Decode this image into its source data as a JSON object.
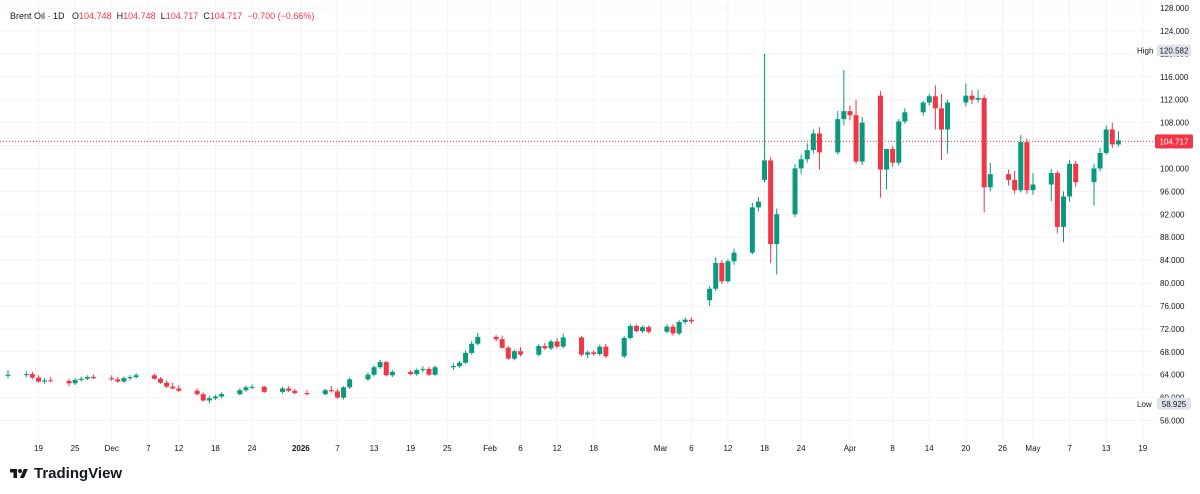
{
  "legend": {
    "symbol": "Brent Oil · 1D",
    "open_label": "O",
    "open": "104.748",
    "high_label": "H",
    "high": "104.748",
    "low_label": "L",
    "low": "104.717",
    "close_label": "C",
    "close": "104.717",
    "change": "−0.700 (−0.66%)"
  },
  "brand": {
    "name": "TradingView",
    "icon": "tradingview-logo-icon"
  },
  "colors": {
    "up": "#089981",
    "down": "#f23645",
    "last_price": "#f23645",
    "grid": "#f0f3fa"
  },
  "chart_data": {
    "type": "candlestick",
    "y_range": [
      54,
      128
    ],
    "y_ticks": [
      56,
      60,
      64,
      68,
      72,
      76,
      80,
      84,
      88,
      92,
      96,
      100,
      104,
      108,
      112,
      116,
      120,
      124,
      128
    ],
    "y_tick_labels": [
      "56.000",
      "60.000",
      "64.000",
      "68.000",
      "72.000",
      "76.000",
      "80.000",
      "84.000",
      "88.000",
      "92.000",
      "96.000",
      "100.000",
      "104.000",
      "108.000",
      "112.000",
      "116.000",
      "120.000",
      "124.000",
      "128.000"
    ],
    "x_axis_ticks": [
      {
        "label": "19",
        "date": "2025-11-19"
      },
      {
        "label": "25",
        "date": "2025-11-25"
      },
      {
        "label": "Dec",
        "date": "2025-12-01"
      },
      {
        "label": "7",
        "date": "2025-12-07"
      },
      {
        "label": "12",
        "date": "2025-12-12"
      },
      {
        "label": "18",
        "date": "2025-12-18"
      },
      {
        "label": "24",
        "date": "2025-12-24"
      },
      {
        "label": "2026",
        "date": "2026-01-01",
        "bold": true
      },
      {
        "label": "7",
        "date": "2026-01-07"
      },
      {
        "label": "13",
        "date": "2026-01-13"
      },
      {
        "label": "19",
        "date": "2026-01-19"
      },
      {
        "label": "25",
        "date": "2026-01-25"
      },
      {
        "label": "Feb",
        "date": "2026-02-01"
      },
      {
        "label": "6",
        "date": "2026-02-06"
      },
      {
        "label": "12",
        "date": "2026-02-12"
      },
      {
        "label": "18",
        "date": "2026-02-18"
      },
      {
        "label": "Mar",
        "date": "2026-03-01"
      },
      {
        "label": "6",
        "date": "2026-03-06"
      },
      {
        "label": "12",
        "date": "2026-03-12"
      },
      {
        "label": "18",
        "date": "2026-03-18"
      },
      {
        "label": "24",
        "date": "2026-03-24"
      },
      {
        "label": "Apr",
        "date": "2026-04-01"
      },
      {
        "label": "8",
        "date": "2026-04-08"
      },
      {
        "label": "14",
        "date": "2026-04-14"
      },
      {
        "label": "20",
        "date": "2026-04-20"
      },
      {
        "label": "26",
        "date": "2026-04-26"
      },
      {
        "label": "May",
        "date": "2026-05-01"
      },
      {
        "label": "7",
        "date": "2026-05-07"
      },
      {
        "label": "13",
        "date": "2026-05-13"
      },
      {
        "label": "19",
        "date": "2026-05-19"
      }
    ],
    "x_range": [
      "2025-11-14",
      "2026-05-21"
    ],
    "candles": [
      {
        "d": "2025-11-14",
        "o": 63.8,
        "h": 64.8,
        "l": 63.4,
        "c": 64.0
      },
      {
        "d": "2025-11-17",
        "o": 64.0,
        "h": 64.6,
        "l": 63.6,
        "c": 64.1
      },
      {
        "d": "2025-11-18",
        "o": 64.1,
        "h": 64.5,
        "l": 63.2,
        "c": 63.5
      },
      {
        "d": "2025-11-19",
        "o": 63.5,
        "h": 63.9,
        "l": 62.6,
        "c": 62.8
      },
      {
        "d": "2025-11-20",
        "o": 62.8,
        "h": 63.4,
        "l": 62.4,
        "c": 63.0
      },
      {
        "d": "2025-11-21",
        "o": 63.0,
        "h": 63.6,
        "l": 62.7,
        "c": 62.9
      },
      {
        "d": "2025-11-24",
        "o": 62.9,
        "h": 63.3,
        "l": 62.0,
        "c": 62.5
      },
      {
        "d": "2025-11-25",
        "o": 62.5,
        "h": 63.4,
        "l": 62.2,
        "c": 63.1
      },
      {
        "d": "2025-11-26",
        "o": 63.1,
        "h": 63.7,
        "l": 62.8,
        "c": 63.3
      },
      {
        "d": "2025-11-27",
        "o": 63.3,
        "h": 63.9,
        "l": 63.0,
        "c": 63.6
      },
      {
        "d": "2025-11-28",
        "o": 63.6,
        "h": 64.0,
        "l": 63.2,
        "c": 63.4
      },
      {
        "d": "2025-12-01",
        "o": 63.4,
        "h": 63.9,
        "l": 62.9,
        "c": 63.2
      },
      {
        "d": "2025-12-02",
        "o": 63.2,
        "h": 63.6,
        "l": 62.6,
        "c": 62.8
      },
      {
        "d": "2025-12-03",
        "o": 62.8,
        "h": 63.7,
        "l": 62.6,
        "c": 63.4
      },
      {
        "d": "2025-12-04",
        "o": 63.4,
        "h": 63.9,
        "l": 63.0,
        "c": 63.6
      },
      {
        "d": "2025-12-05",
        "o": 63.6,
        "h": 64.3,
        "l": 63.3,
        "c": 63.9
      },
      {
        "d": "2025-12-08",
        "o": 63.9,
        "h": 64.2,
        "l": 63.1,
        "c": 63.3
      },
      {
        "d": "2025-12-09",
        "o": 63.3,
        "h": 63.6,
        "l": 62.4,
        "c": 62.6
      },
      {
        "d": "2025-12-10",
        "o": 62.6,
        "h": 63.0,
        "l": 61.7,
        "c": 61.9
      },
      {
        "d": "2025-12-11",
        "o": 61.9,
        "h": 62.6,
        "l": 61.4,
        "c": 61.6
      },
      {
        "d": "2025-12-12",
        "o": 61.6,
        "h": 62.2,
        "l": 61.0,
        "c": 61.2
      },
      {
        "d": "2025-12-15",
        "o": 61.2,
        "h": 61.6,
        "l": 60.4,
        "c": 60.6
      },
      {
        "d": "2025-12-16",
        "o": 60.6,
        "h": 60.9,
        "l": 59.3,
        "c": 59.5
      },
      {
        "d": "2025-12-17",
        "o": 59.5,
        "h": 60.3,
        "l": 59.0,
        "c": 59.9
      },
      {
        "d": "2025-12-18",
        "o": 59.9,
        "h": 60.5,
        "l": 59.6,
        "c": 60.2
      },
      {
        "d": "2025-12-19",
        "o": 60.2,
        "h": 60.9,
        "l": 59.9,
        "c": 60.6
      },
      {
        "d": "2025-12-22",
        "o": 60.6,
        "h": 61.6,
        "l": 60.4,
        "c": 61.3
      },
      {
        "d": "2025-12-23",
        "o": 61.3,
        "h": 62.1,
        "l": 61.0,
        "c": 61.8
      },
      {
        "d": "2025-12-24",
        "o": 61.8,
        "h": 62.3,
        "l": 61.5,
        "c": 61.9
      },
      {
        "d": "2025-12-26",
        "o": 61.9,
        "h": 62.1,
        "l": 60.8,
        "c": 61.0
      },
      {
        "d": "2025-12-29",
        "o": 61.0,
        "h": 61.9,
        "l": 60.7,
        "c": 61.6
      },
      {
        "d": "2025-12-30",
        "o": 61.6,
        "h": 62.0,
        "l": 61.0,
        "c": 61.2
      },
      {
        "d": "2025-12-31",
        "o": 61.2,
        "h": 61.5,
        "l": 60.6,
        "c": 60.8
      },
      {
        "d": "2026-01-02",
        "o": 60.8,
        "h": 61.3,
        "l": 60.4,
        "c": 60.6
      },
      {
        "d": "2026-01-05",
        "o": 60.6,
        "h": 61.6,
        "l": 60.4,
        "c": 61.3
      },
      {
        "d": "2026-01-06",
        "o": 61.3,
        "h": 62.0,
        "l": 60.9,
        "c": 61.1
      },
      {
        "d": "2026-01-07",
        "o": 61.1,
        "h": 61.5,
        "l": 59.8,
        "c": 60.0
      },
      {
        "d": "2026-01-08",
        "o": 60.0,
        "h": 62.0,
        "l": 59.7,
        "c": 61.8
      },
      {
        "d": "2026-01-09",
        "o": 61.8,
        "h": 63.5,
        "l": 61.5,
        "c": 63.2
      },
      {
        "d": "2026-01-12",
        "o": 63.2,
        "h": 64.4,
        "l": 62.9,
        "c": 64.0
      },
      {
        "d": "2026-01-13",
        "o": 64.0,
        "h": 65.6,
        "l": 63.7,
        "c": 65.3
      },
      {
        "d": "2026-01-14",
        "o": 65.3,
        "h": 66.6,
        "l": 65.0,
        "c": 66.2
      },
      {
        "d": "2026-01-15",
        "o": 66.2,
        "h": 66.4,
        "l": 63.7,
        "c": 63.9
      },
      {
        "d": "2026-01-16",
        "o": 63.9,
        "h": 64.8,
        "l": 63.6,
        "c": 64.5
      },
      {
        "d": "2026-01-19",
        "o": 64.5,
        "h": 64.8,
        "l": 63.9,
        "c": 64.1
      },
      {
        "d": "2026-01-20",
        "o": 64.1,
        "h": 65.1,
        "l": 63.8,
        "c": 64.8
      },
      {
        "d": "2026-01-21",
        "o": 64.8,
        "h": 65.5,
        "l": 64.4,
        "c": 65.0
      },
      {
        "d": "2026-01-22",
        "o": 65.0,
        "h": 65.4,
        "l": 63.8,
        "c": 64.0
      },
      {
        "d": "2026-01-23",
        "o": 64.0,
        "h": 65.6,
        "l": 63.8,
        "c": 65.3
      },
      {
        "d": "2026-01-26",
        "o": 65.3,
        "h": 66.0,
        "l": 64.8,
        "c": 65.5
      },
      {
        "d": "2026-01-27",
        "o": 65.5,
        "h": 66.4,
        "l": 65.2,
        "c": 66.1
      },
      {
        "d": "2026-01-28",
        "o": 66.1,
        "h": 68.2,
        "l": 65.9,
        "c": 67.8
      },
      {
        "d": "2026-01-29",
        "o": 67.8,
        "h": 69.9,
        "l": 67.5,
        "c": 69.4
      },
      {
        "d": "2026-01-30",
        "o": 69.4,
        "h": 71.3,
        "l": 69.1,
        "c": 70.6
      },
      {
        "d": "2026-02-02",
        "o": 70.6,
        "h": 70.9,
        "l": 69.8,
        "c": 70.2
      },
      {
        "d": "2026-02-03",
        "o": 70.2,
        "h": 70.8,
        "l": 68.5,
        "c": 68.7
      },
      {
        "d": "2026-02-04",
        "o": 68.7,
        "h": 69.0,
        "l": 66.6,
        "c": 66.8
      },
      {
        "d": "2026-02-05",
        "o": 66.8,
        "h": 68.4,
        "l": 66.5,
        "c": 68.1
      },
      {
        "d": "2026-02-06",
        "o": 68.1,
        "h": 68.8,
        "l": 67.2,
        "c": 67.5
      },
      {
        "d": "2026-02-09",
        "o": 67.5,
        "h": 69.3,
        "l": 67.2,
        "c": 69.0
      },
      {
        "d": "2026-02-10",
        "o": 69.0,
        "h": 69.5,
        "l": 68.3,
        "c": 68.6
      },
      {
        "d": "2026-02-11",
        "o": 68.6,
        "h": 70.1,
        "l": 68.3,
        "c": 69.8
      },
      {
        "d": "2026-02-12",
        "o": 69.8,
        "h": 70.4,
        "l": 68.6,
        "c": 68.9
      },
      {
        "d": "2026-02-13",
        "o": 68.9,
        "h": 71.2,
        "l": 68.6,
        "c": 70.5
      },
      {
        "d": "2026-02-16",
        "o": 70.5,
        "h": 70.8,
        "l": 67.2,
        "c": 67.5
      },
      {
        "d": "2026-02-17",
        "o": 67.5,
        "h": 68.2,
        "l": 66.9,
        "c": 67.9
      },
      {
        "d": "2026-02-18",
        "o": 67.9,
        "h": 68.3,
        "l": 67.3,
        "c": 67.6
      },
      {
        "d": "2026-02-19",
        "o": 67.6,
        "h": 69.2,
        "l": 67.3,
        "c": 68.9
      },
      {
        "d": "2026-02-20",
        "o": 68.9,
        "h": 69.4,
        "l": 66.9,
        "c": 67.2
      },
      {
        "d": "2026-02-23",
        "o": 67.2,
        "h": 70.8,
        "l": 66.9,
        "c": 70.4
      },
      {
        "d": "2026-02-24",
        "o": 70.4,
        "h": 72.9,
        "l": 70.1,
        "c": 72.5
      },
      {
        "d": "2026-02-25",
        "o": 72.5,
        "h": 72.8,
        "l": 71.4,
        "c": 71.6
      },
      {
        "d": "2026-02-26",
        "o": 71.6,
        "h": 72.6,
        "l": 71.3,
        "c": 72.3
      },
      {
        "d": "2026-02-27",
        "o": 72.3,
        "h": 72.6,
        "l": 71.2,
        "c": 71.5
      },
      {
        "d": "2026-03-02",
        "o": 71.5,
        "h": 72.8,
        "l": 71.2,
        "c": 72.4
      },
      {
        "d": "2026-03-03",
        "o": 72.4,
        "h": 72.8,
        "l": 70.8,
        "c": 71.2
      },
      {
        "d": "2026-03-04",
        "o": 71.2,
        "h": 73.5,
        "l": 70.9,
        "c": 73.2
      },
      {
        "d": "2026-03-05",
        "o": 73.2,
        "h": 74.0,
        "l": 72.8,
        "c": 73.6
      },
      {
        "d": "2026-03-06",
        "o": 73.6,
        "h": 74.0,
        "l": 72.9,
        "c": 73.3
      },
      {
        "d": "2026-03-09",
        "o": 77.0,
        "h": 79.5,
        "l": 76.0,
        "c": 79.0
      },
      {
        "d": "2026-03-10",
        "o": 79.0,
        "h": 84.5,
        "l": 78.6,
        "c": 83.5
      },
      {
        "d": "2026-03-11",
        "o": 83.5,
        "h": 84.0,
        "l": 79.8,
        "c": 80.3
      },
      {
        "d": "2026-03-12",
        "o": 80.3,
        "h": 84.2,
        "l": 80.0,
        "c": 83.8
      },
      {
        "d": "2026-03-13",
        "o": 83.8,
        "h": 86.0,
        "l": 83.2,
        "c": 85.3
      },
      {
        "d": "2026-03-16",
        "o": 85.3,
        "h": 94.0,
        "l": 85.0,
        "c": 93.2
      },
      {
        "d": "2026-03-17",
        "o": 93.2,
        "h": 95.0,
        "l": 92.5,
        "c": 94.2
      },
      {
        "d": "2026-03-18",
        "o": 98.0,
        "h": 120.0,
        "l": 97.5,
        "c": 101.4
      },
      {
        "d": "2026-03-19",
        "o": 101.4,
        "h": 102.0,
        "l": 83.5,
        "c": 86.8
      },
      {
        "d": "2026-03-20",
        "o": 86.8,
        "h": 93.0,
        "l": 81.5,
        "c": 92.0
      },
      {
        "d": "2026-03-23",
        "o": 92.0,
        "h": 100.8,
        "l": 91.5,
        "c": 100.0
      },
      {
        "d": "2026-03-24",
        "o": 100.0,
        "h": 102.4,
        "l": 99.0,
        "c": 101.6
      },
      {
        "d": "2026-03-25",
        "o": 101.6,
        "h": 104.4,
        "l": 101.0,
        "c": 103.2
      },
      {
        "d": "2026-03-26",
        "o": 103.2,
        "h": 106.8,
        "l": 102.6,
        "c": 106.1
      },
      {
        "d": "2026-03-27",
        "o": 106.1,
        "h": 107.2,
        "l": 99.8,
        "c": 102.8
      },
      {
        "d": "2026-03-30",
        "o": 102.8,
        "h": 110.0,
        "l": 102.4,
        "c": 108.6
      },
      {
        "d": "2026-03-31",
        "o": 108.6,
        "h": 117.2,
        "l": 107.5,
        "c": 110.0
      },
      {
        "d": "2026-04-01",
        "o": 110.0,
        "h": 111.0,
        "l": 108.4,
        "c": 109.3
      },
      {
        "d": "2026-04-02",
        "o": 109.3,
        "h": 112.0,
        "l": 100.8,
        "c": 101.2
      },
      {
        "d": "2026-04-03",
        "o": 101.2,
        "h": 109.0,
        "l": 100.6,
        "c": 108.0
      },
      {
        "d": "2026-04-06",
        "o": 112.7,
        "h": 113.5,
        "l": 94.9,
        "c": 99.8
      },
      {
        "d": "2026-04-07",
        "o": 99.8,
        "h": 103.0,
        "l": 96.3,
        "c": 103.4
      },
      {
        "d": "2026-04-08",
        "o": 103.4,
        "h": 103.9,
        "l": 100.3,
        "c": 101.0
      },
      {
        "d": "2026-04-09",
        "o": 101.0,
        "h": 108.6,
        "l": 100.6,
        "c": 108.2
      },
      {
        "d": "2026-04-10",
        "o": 108.2,
        "h": 110.5,
        "l": 107.8,
        "c": 109.8
      },
      {
        "d": "2026-04-13",
        "o": 109.8,
        "h": 111.8,
        "l": 109.2,
        "c": 111.5
      },
      {
        "d": "2026-04-14",
        "o": 111.5,
        "h": 113.0,
        "l": 111.0,
        "c": 112.6
      },
      {
        "d": "2026-04-15",
        "o": 112.6,
        "h": 114.5,
        "l": 106.8,
        "c": 110.5
      },
      {
        "d": "2026-04-16",
        "o": 110.5,
        "h": 113.0,
        "l": 101.5,
        "c": 106.8
      },
      {
        "d": "2026-04-17",
        "o": 106.8,
        "h": 112.0,
        "l": 102.6,
        "c": 111.5
      },
      {
        "d": "2026-04-20",
        "o": 111.5,
        "h": 114.8,
        "l": 110.8,
        "c": 112.7
      },
      {
        "d": "2026-04-21",
        "o": 112.7,
        "h": 113.6,
        "l": 111.2,
        "c": 112.0
      },
      {
        "d": "2026-04-22",
        "o": 112.0,
        "h": 113.7,
        "l": 111.5,
        "c": 112.3
      },
      {
        "d": "2026-04-23",
        "o": 112.3,
        "h": 112.8,
        "l": 92.3,
        "c": 96.7
      },
      {
        "d": "2026-04-24",
        "o": 96.7,
        "h": 101.0,
        "l": 96.0,
        "c": 99.0
      },
      {
        "d": "2026-04-27",
        "o": 99.0,
        "h": 99.8,
        "l": 97.0,
        "c": 98.0
      },
      {
        "d": "2026-04-28",
        "o": 98.0,
        "h": 99.6,
        "l": 95.6,
        "c": 96.2
      },
      {
        "d": "2026-04-29",
        "o": 96.2,
        "h": 105.8,
        "l": 95.8,
        "c": 104.6
      },
      {
        "d": "2026-04-30",
        "o": 104.6,
        "h": 105.2,
        "l": 95.6,
        "c": 96.2
      },
      {
        "d": "2026-05-01",
        "o": 96.2,
        "h": 99.2,
        "l": 95.4,
        "c": 97.2
      },
      {
        "d": "2026-05-04",
        "o": 97.2,
        "h": 99.9,
        "l": 94.3,
        "c": 99.2
      },
      {
        "d": "2026-05-05",
        "o": 99.2,
        "h": 99.6,
        "l": 88.7,
        "c": 89.8
      },
      {
        "d": "2026-05-06",
        "o": 89.8,
        "h": 96.0,
        "l": 87.1,
        "c": 95.1
      },
      {
        "d": "2026-05-07",
        "o": 95.1,
        "h": 101.5,
        "l": 94.2,
        "c": 100.8
      },
      {
        "d": "2026-05-08",
        "o": 100.8,
        "h": 101.3,
        "l": 96.8,
        "c": 97.6
      },
      {
        "d": "2026-05-11",
        "o": 97.6,
        "h": 100.8,
        "l": 93.5,
        "c": 100.0
      },
      {
        "d": "2026-05-12",
        "o": 100.0,
        "h": 103.6,
        "l": 99.5,
        "c": 102.7
      },
      {
        "d": "2026-05-13",
        "o": 102.7,
        "h": 107.5,
        "l": 102.4,
        "c": 106.8
      },
      {
        "d": "2026-05-14",
        "o": 106.8,
        "h": 108.0,
        "l": 103.6,
        "c": 104.2
      },
      {
        "d": "2026-05-15",
        "o": 104.2,
        "h": 106.5,
        "l": 103.8,
        "c": 104.9
      }
    ],
    "last_price": 104.717,
    "last_price_label": "104.717",
    "high_marker": {
      "label": "High",
      "value": "120.582",
      "price": 120.582
    },
    "low_marker": {
      "label": "Low",
      "value": "58.925",
      "price": 58.925
    }
  }
}
